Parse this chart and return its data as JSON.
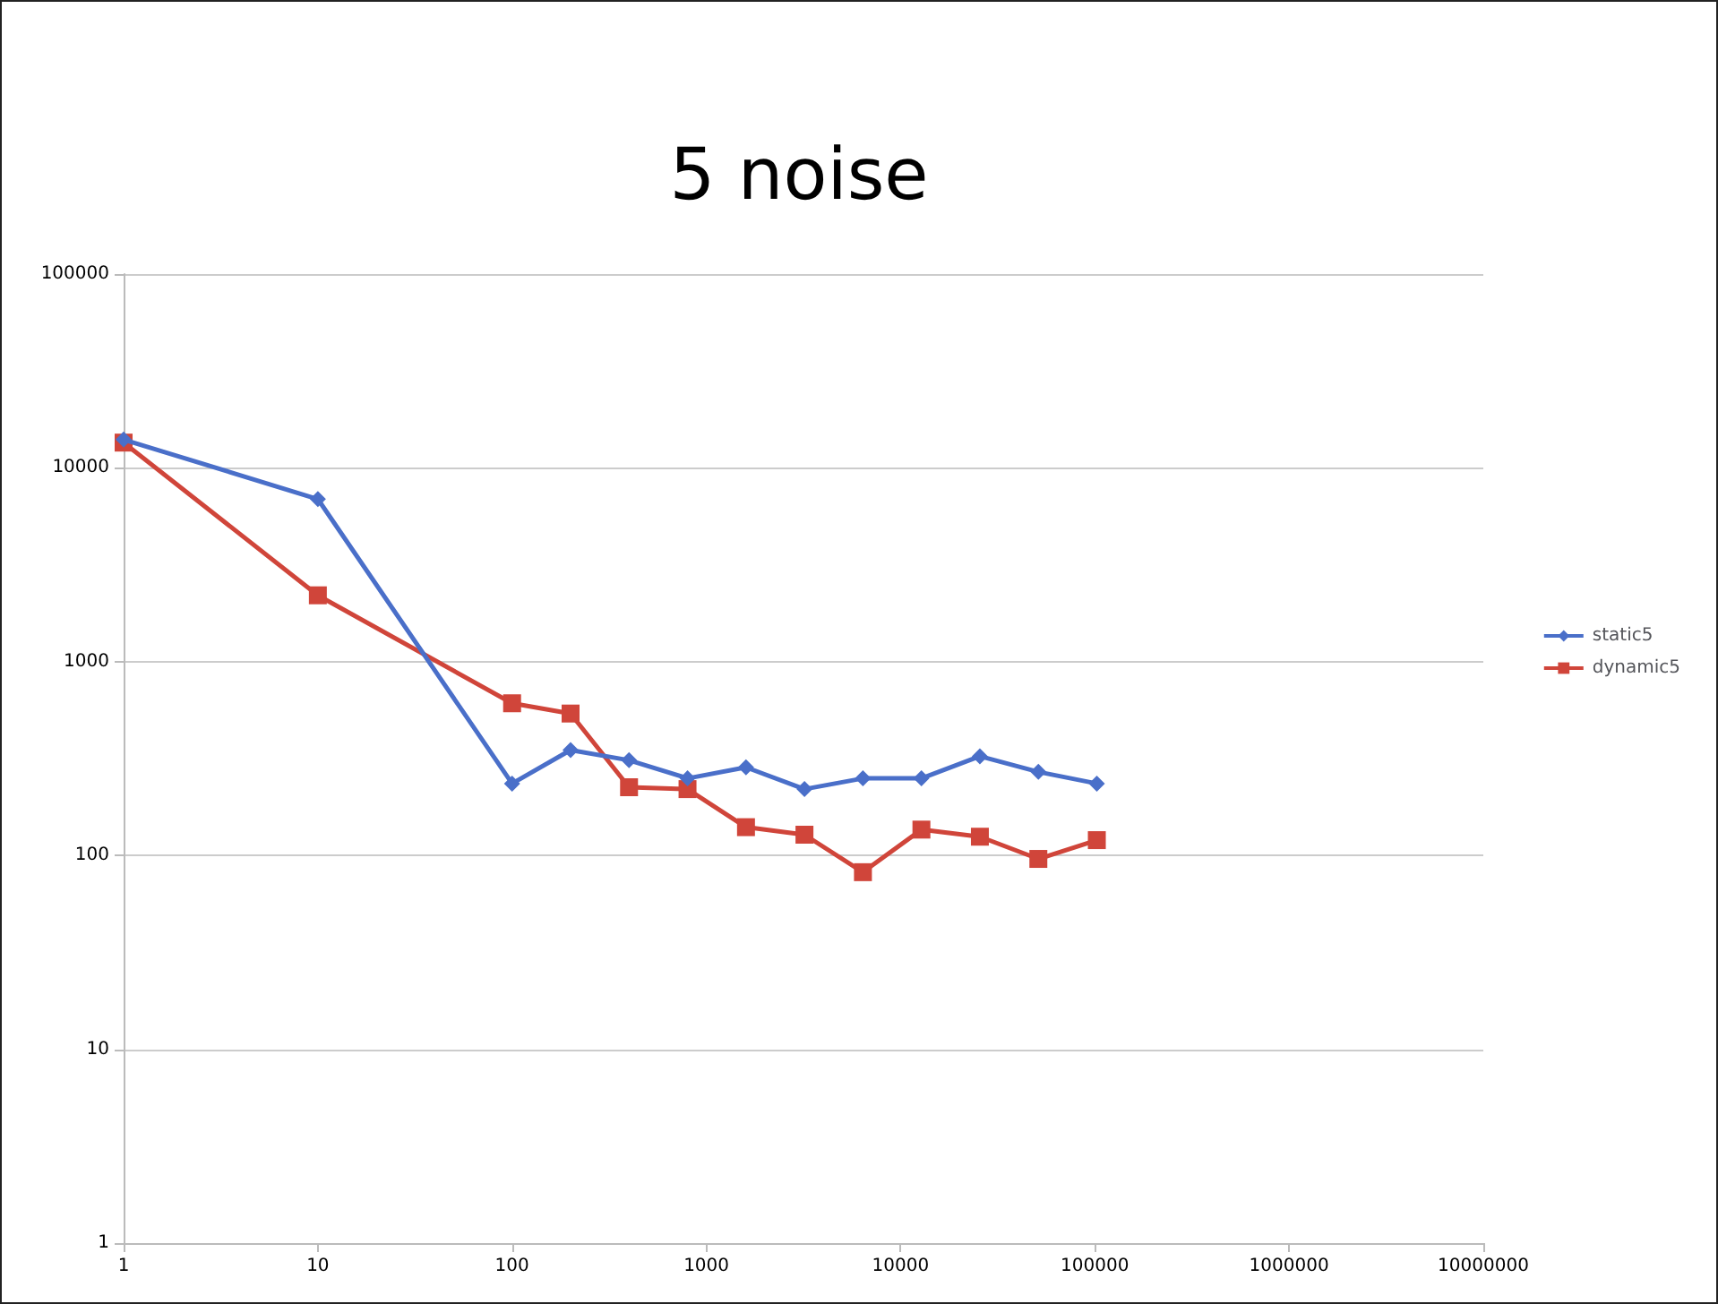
{
  "chart_data": {
    "type": "line",
    "title": "5 noise",
    "log": "xy",
    "x": [
      1,
      10,
      100,
      200,
      400,
      800,
      1600,
      3200,
      6400,
      12800,
      25600,
      51200,
      102400
    ],
    "series": [
      {
        "name": "static5",
        "color": "#4a6fc9",
        "marker": "diamond",
        "values": [
          14000,
          6900,
          235,
          350,
          310,
          250,
          285,
          220,
          250,
          250,
          325,
          270,
          235
        ]
      },
      {
        "name": "dynamic5",
        "color": "#d0453a",
        "marker": "square",
        "values": [
          13500,
          2200,
          610,
          540,
          225,
          220,
          140,
          128,
          82,
          136,
          125,
          96,
          120
        ]
      }
    ],
    "xlim": [
      1,
      10000000
    ],
    "xticks": [
      1,
      10,
      100,
      1000,
      10000,
      100000,
      1000000,
      10000000
    ],
    "ylim": [
      1,
      100000
    ],
    "yticks": [
      1,
      10,
      100,
      1000,
      10000,
      100000
    ],
    "grid": "y",
    "legend": "right",
    "line_style": "solid"
  }
}
